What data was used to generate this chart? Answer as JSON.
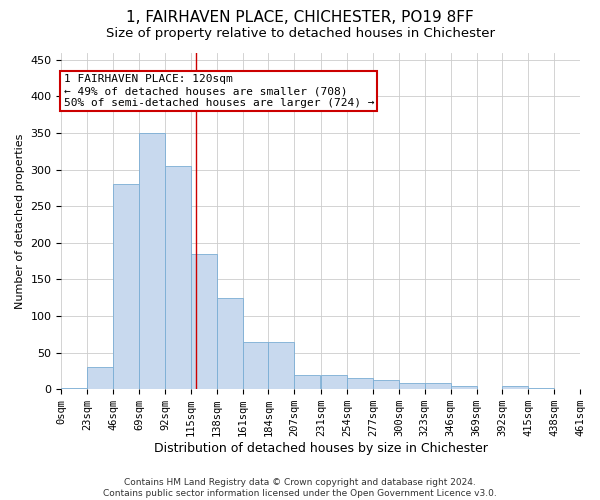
{
  "title": "1, FAIRHAVEN PLACE, CHICHESTER, PO19 8FF",
  "subtitle": "Size of property relative to detached houses in Chichester",
  "xlabel": "Distribution of detached houses by size in Chichester",
  "ylabel": "Number of detached properties",
  "bar_color": "#c8d9ee",
  "bar_edge_color": "#7aadd4",
  "background_color": "#ffffff",
  "grid_color": "#cccccc",
  "bin_edges": [
    0,
    23,
    46,
    69,
    92,
    115,
    138,
    161,
    184,
    207,
    231,
    254,
    277,
    300,
    323,
    346,
    369,
    392,
    415,
    438,
    461
  ],
  "bar_heights": [
    2,
    30,
    280,
    350,
    305,
    185,
    125,
    65,
    65,
    20,
    20,
    15,
    12,
    8,
    8,
    4,
    0,
    4,
    2,
    0
  ],
  "tick_labels": [
    "0sqm",
    "23sqm",
    "46sqm",
    "69sqm",
    "92sqm",
    "115sqm",
    "138sqm",
    "161sqm",
    "184sqm",
    "207sqm",
    "231sqm",
    "254sqm",
    "277sqm",
    "300sqm",
    "323sqm",
    "346sqm",
    "369sqm",
    "392sqm",
    "415sqm",
    "438sqm",
    "461sqm"
  ],
  "property_size": 120,
  "property_label": "1 FAIRHAVEN PLACE: 120sqm",
  "annotation_line1": "← 49% of detached houses are smaller (708)",
  "annotation_line2": "50% of semi-detached houses are larger (724) →",
  "annotation_box_color": "#ffffff",
  "annotation_box_edge": "#cc0000",
  "vline_color": "#cc0000",
  "footer_line1": "Contains HM Land Registry data © Crown copyright and database right 2024.",
  "footer_line2": "Contains public sector information licensed under the Open Government Licence v3.0.",
  "ylim": [
    0,
    460
  ],
  "yticks": [
    0,
    50,
    100,
    150,
    200,
    250,
    300,
    350,
    400,
    450
  ],
  "title_fontsize": 11,
  "subtitle_fontsize": 9.5,
  "xlabel_fontsize": 9,
  "ylabel_fontsize": 8,
  "tick_fontsize": 7.5,
  "footer_fontsize": 6.5,
  "annotation_fontsize": 8
}
